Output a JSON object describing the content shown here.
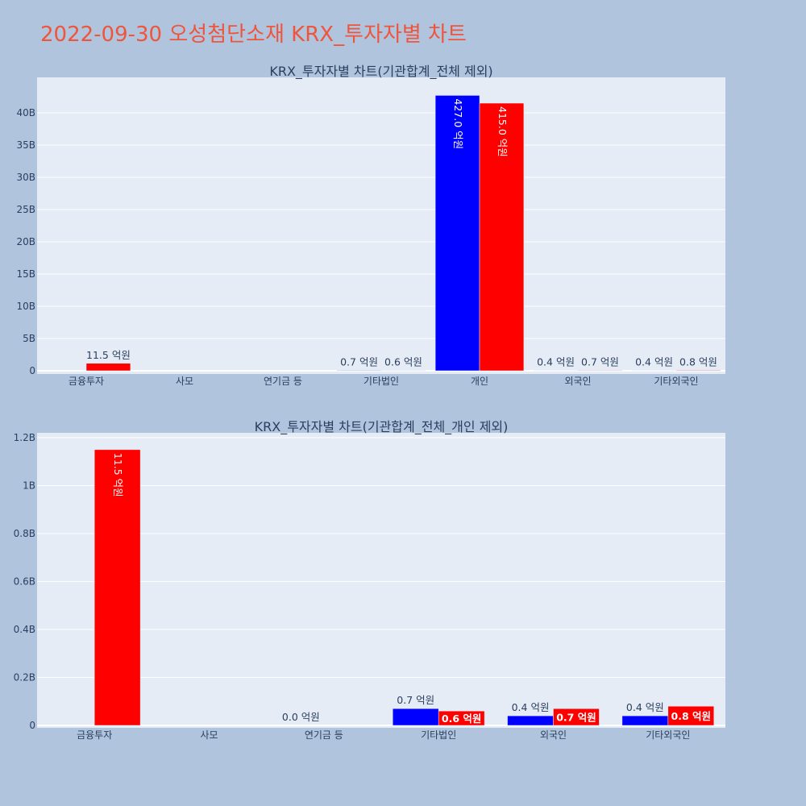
{
  "title": "2022-09-30 오성첨단소재 KRX_투자자별 차트",
  "colors": {
    "buy": "#0000FF",
    "sell": "#FF0000",
    "plot_bg": "#E5ECF6",
    "page_bg": "#B0C4DE",
    "title": "#EF553B"
  },
  "chart_data": [
    {
      "type": "bar",
      "title": "KRX_투자자별 차트(기관합계_전체 제외)",
      "categories": [
        "금융투자",
        "사모",
        "연기금 등",
        "기타법인",
        "개인",
        "외국인",
        "기타외국인"
      ],
      "series": [
        {
          "values": [
            0,
            0,
            0,
            70000000,
            42700000000,
            40000000,
            40000000
          ],
          "labels": [
            "",
            "",
            "",
            "0.7 억원",
            "427.0 억원",
            "0.4 억원",
            "0.4 억원"
          ],
          "color": "#0000FF"
        },
        {
          "values": [
            1150000000,
            0,
            0,
            60000000,
            41500000000,
            70000000,
            80000000
          ],
          "labels": [
            "11.5 억원",
            "",
            "",
            "0.6 억원",
            "415.0 억원",
            "0.7 억원",
            "0.8 억원"
          ],
          "color": "#FF0000"
        }
      ],
      "yticks": [
        "0",
        "5B",
        "10B",
        "15B",
        "20B",
        "25B",
        "30B",
        "35B",
        "40B"
      ],
      "ylim": [
        0,
        44000000000
      ],
      "grid": true
    },
    {
      "type": "bar",
      "title": "KRX_투자자별 차트(기관합계_전체_개인 제외)",
      "categories": [
        "금융투자",
        "사모",
        "연기금 등",
        "기타법인",
        "외국인",
        "기타외국인"
      ],
      "series": [
        {
          "values": [
            0,
            0,
            0,
            70000000,
            40000000,
            40000000
          ],
          "labels": [
            "",
            "",
            "0.0 억원",
            "0.7 억원",
            "0.4 억원",
            "0.4 억원"
          ],
          "color": "#0000FF"
        },
        {
          "values": [
            1150000000,
            0,
            0,
            60000000,
            70000000,
            80000000
          ],
          "labels": [
            "11.5 억원",
            "",
            "",
            "0.6 억원",
            "0.7 억원",
            "0.8 억원"
          ],
          "color": "#FF0000"
        }
      ],
      "yticks": [
        "0",
        "0.2B",
        "0.4B",
        "0.6B",
        "0.8B",
        "1B",
        "1.2B"
      ],
      "ylim": [
        0,
        1210000000
      ],
      "grid": true
    }
  ]
}
